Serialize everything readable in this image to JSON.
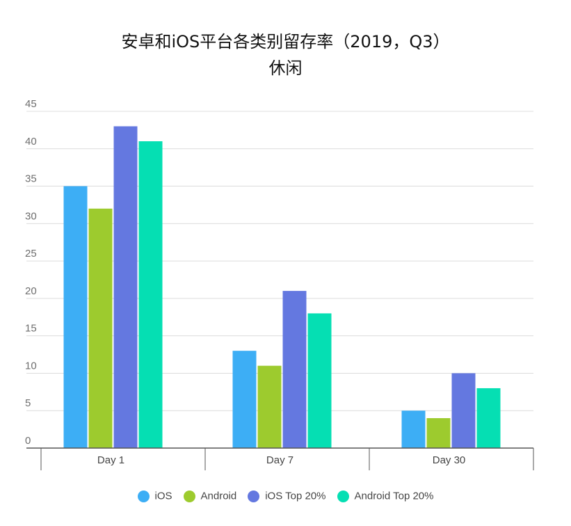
{
  "chart_data": {
    "type": "bar",
    "title": "安卓和iOS平台各类别留存率（2019，Q3）",
    "subtitle": "休闲",
    "categories": [
      "Day 1",
      "Day 7",
      "Day 30"
    ],
    "series": [
      {
        "name": "iOS",
        "color": "#3daef5",
        "values": [
          35,
          13,
          5
        ]
      },
      {
        "name": "Android",
        "color": "#9dcb2e",
        "values": [
          32,
          11,
          4
        ]
      },
      {
        "name": "iOS Top 20%",
        "color": "#6478e0",
        "values": [
          43,
          21,
          10
        ]
      },
      {
        "name": "Android Top 20%",
        "color": "#05dfb3",
        "values": [
          41,
          18,
          8
        ]
      }
    ],
    "ylim": [
      0,
      45
    ],
    "yticks": [
      0,
      5,
      10,
      15,
      20,
      25,
      30,
      35,
      40,
      45
    ],
    "grid": true,
    "legend_position": "bottom"
  }
}
